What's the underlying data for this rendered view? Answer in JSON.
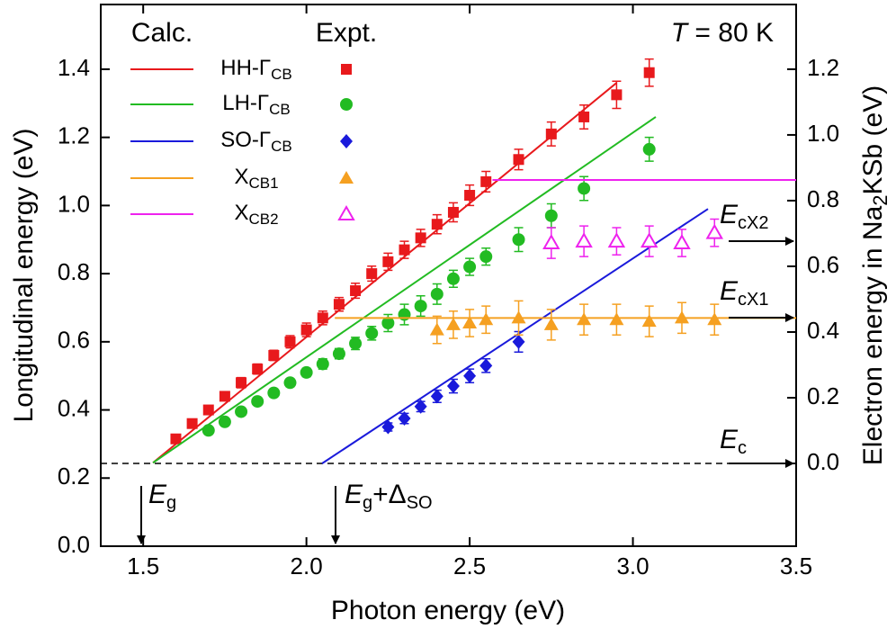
{
  "chart_data": {
    "type": "line",
    "xlabel": "Photon energy (eV)",
    "ylabel": "Longitudinal energy (eV)",
    "y2label": [
      "Electron energy in Na",
      "2",
      "KSb (eV)"
    ],
    "xlim": [
      1.37,
      3.5
    ],
    "xticks": [
      1.5,
      {
        "value": 2,
        "label": "2.0"
      },
      2.5,
      {
        "value": 3,
        "label": "3.0"
      },
      3.5
    ],
    "ylim": [
      0,
      1.59
    ],
    "yticks": [
      {
        "value": 0,
        "label": "0.0"
      },
      0.2,
      0.4,
      0.6,
      0.8,
      {
        "value": 1,
        "label": "1.0"
      },
      1.2,
      1.4
    ],
    "y2lim": [
      -0.252,
      1.397
    ],
    "y2ticks": [
      {
        "value": 0,
        "label": "0.0"
      },
      0.2,
      0.4,
      0.6,
      0.8,
      {
        "value": 1,
        "label": "1.0"
      },
      1.2
    ],
    "legend_headers": [
      "Calc.",
      "Expt."
    ],
    "temperature": [
      "T",
      " = 80 K"
    ],
    "annotations": [
      [
        "E",
        "g"
      ],
      [
        "E",
        "g",
        "+Δ",
        "SO"
      ],
      [
        "E",
        "cX2"
      ],
      [
        "E",
        "cX1"
      ],
      [
        "E",
        "c"
      ]
    ],
    "series": [
      {
        "name": "HH-Γ",
        "sub": "CB",
        "color": "#e8191c",
        "x": [
          1.53,
          2.95
        ],
        "values": [
          0.245,
          1.36
        ],
        "expt": {
          "marker": "square",
          "x": [
            1.6,
            1.65,
            1.7,
            1.75,
            1.8,
            1.85,
            1.9,
            1.95,
            2.0,
            2.05,
            2.1,
            2.15,
            2.2,
            2.25,
            2.3,
            2.35,
            2.4,
            2.45,
            2.5,
            2.55,
            2.65,
            2.75,
            2.85,
            2.95,
            3.05
          ],
          "values": [
            0.315,
            0.36,
            0.4,
            0.44,
            0.48,
            0.52,
            0.56,
            0.6,
            0.635,
            0.67,
            0.71,
            0.75,
            0.8,
            0.835,
            0.87,
            0.905,
            0.945,
            0.98,
            1.03,
            1.07,
            1.135,
            1.21,
            1.26,
            1.325,
            1.39
          ],
          "errors": [
            0.01,
            0.01,
            0.012,
            0.012,
            0.015,
            0.015,
            0.015,
            0.018,
            0.02,
            0.02,
            0.02,
            0.022,
            0.022,
            0.025,
            0.025,
            0.025,
            0.028,
            0.028,
            0.03,
            0.03,
            0.03,
            0.035,
            0.035,
            0.04,
            0.04
          ]
        }
      },
      {
        "name": "LH-Γ",
        "sub": "CB",
        "color": "#22bb22",
        "x": [
          1.53,
          3.07
        ],
        "values": [
          0.245,
          1.26
        ],
        "expt": {
          "marker": "circle",
          "x": [
            1.7,
            1.75,
            1.8,
            1.85,
            1.9,
            1.95,
            2.0,
            2.05,
            2.1,
            2.15,
            2.2,
            2.25,
            2.3,
            2.35,
            2.4,
            2.45,
            2.5,
            2.55,
            2.65,
            2.75,
            2.85,
            3.05
          ],
          "values": [
            0.34,
            0.365,
            0.395,
            0.425,
            0.45,
            0.48,
            0.51,
            0.535,
            0.565,
            0.595,
            0.625,
            0.655,
            0.68,
            0.705,
            0.74,
            0.785,
            0.82,
            0.85,
            0.9,
            0.97,
            1.05,
            1.165
          ],
          "errors": [
            0.008,
            0.008,
            0.01,
            0.01,
            0.01,
            0.012,
            0.012,
            0.015,
            0.015,
            0.018,
            0.02,
            0.025,
            0.03,
            0.03,
            0.03,
            0.025,
            0.025,
            0.025,
            0.035,
            0.035,
            0.035,
            0.035
          ]
        }
      },
      {
        "name": "SO-Γ",
        "sub": "CB",
        "color": "#1a1adb",
        "x": [
          2.048,
          3.23
        ],
        "values": [
          0.243,
          0.99
        ],
        "expt": {
          "marker": "diamond",
          "x": [
            2.25,
            2.3,
            2.35,
            2.4,
            2.45,
            2.5,
            2.55,
            2.65
          ],
          "values": [
            0.35,
            0.375,
            0.41,
            0.44,
            0.47,
            0.5,
            0.53,
            0.6
          ],
          "errors": [
            0.012,
            0.015,
            0.015,
            0.018,
            0.02,
            0.02,
            0.02,
            0.03
          ]
        }
      },
      {
        "name": "X",
        "sub": "CB1",
        "color": "#f5a021",
        "x": [
          2.087,
          3.5
        ],
        "values": [
          0.67,
          0.67
        ],
        "expt": {
          "marker": "triangle",
          "x": [
            2.4,
            2.45,
            2.5,
            2.55,
            2.65,
            2.75,
            2.85,
            2.95,
            3.05,
            3.15,
            3.25
          ],
          "values": [
            0.635,
            0.65,
            0.655,
            0.665,
            0.67,
            0.65,
            0.665,
            0.665,
            0.66,
            0.67,
            0.665
          ],
          "errors": [
            0.04,
            0.04,
            0.04,
            0.04,
            0.05,
            0.045,
            0.045,
            0.045,
            0.045,
            0.045,
            0.045
          ]
        }
      },
      {
        "name": "X",
        "sub": "CB2",
        "color": "#ee22ee",
        "x": [
          2.57,
          3.5
        ],
        "values": [
          1.075,
          1.075
        ],
        "expt": {
          "marker": "triangle-open",
          "x": [
            2.75,
            2.85,
            2.95,
            3.05,
            3.15,
            3.25
          ],
          "values": [
            0.89,
            0.895,
            0.895,
            0.895,
            0.89,
            0.92
          ],
          "errors": [
            0.045,
            0.045,
            0.04,
            0.045,
            0.04,
            0.04
          ]
        }
      }
    ]
  }
}
